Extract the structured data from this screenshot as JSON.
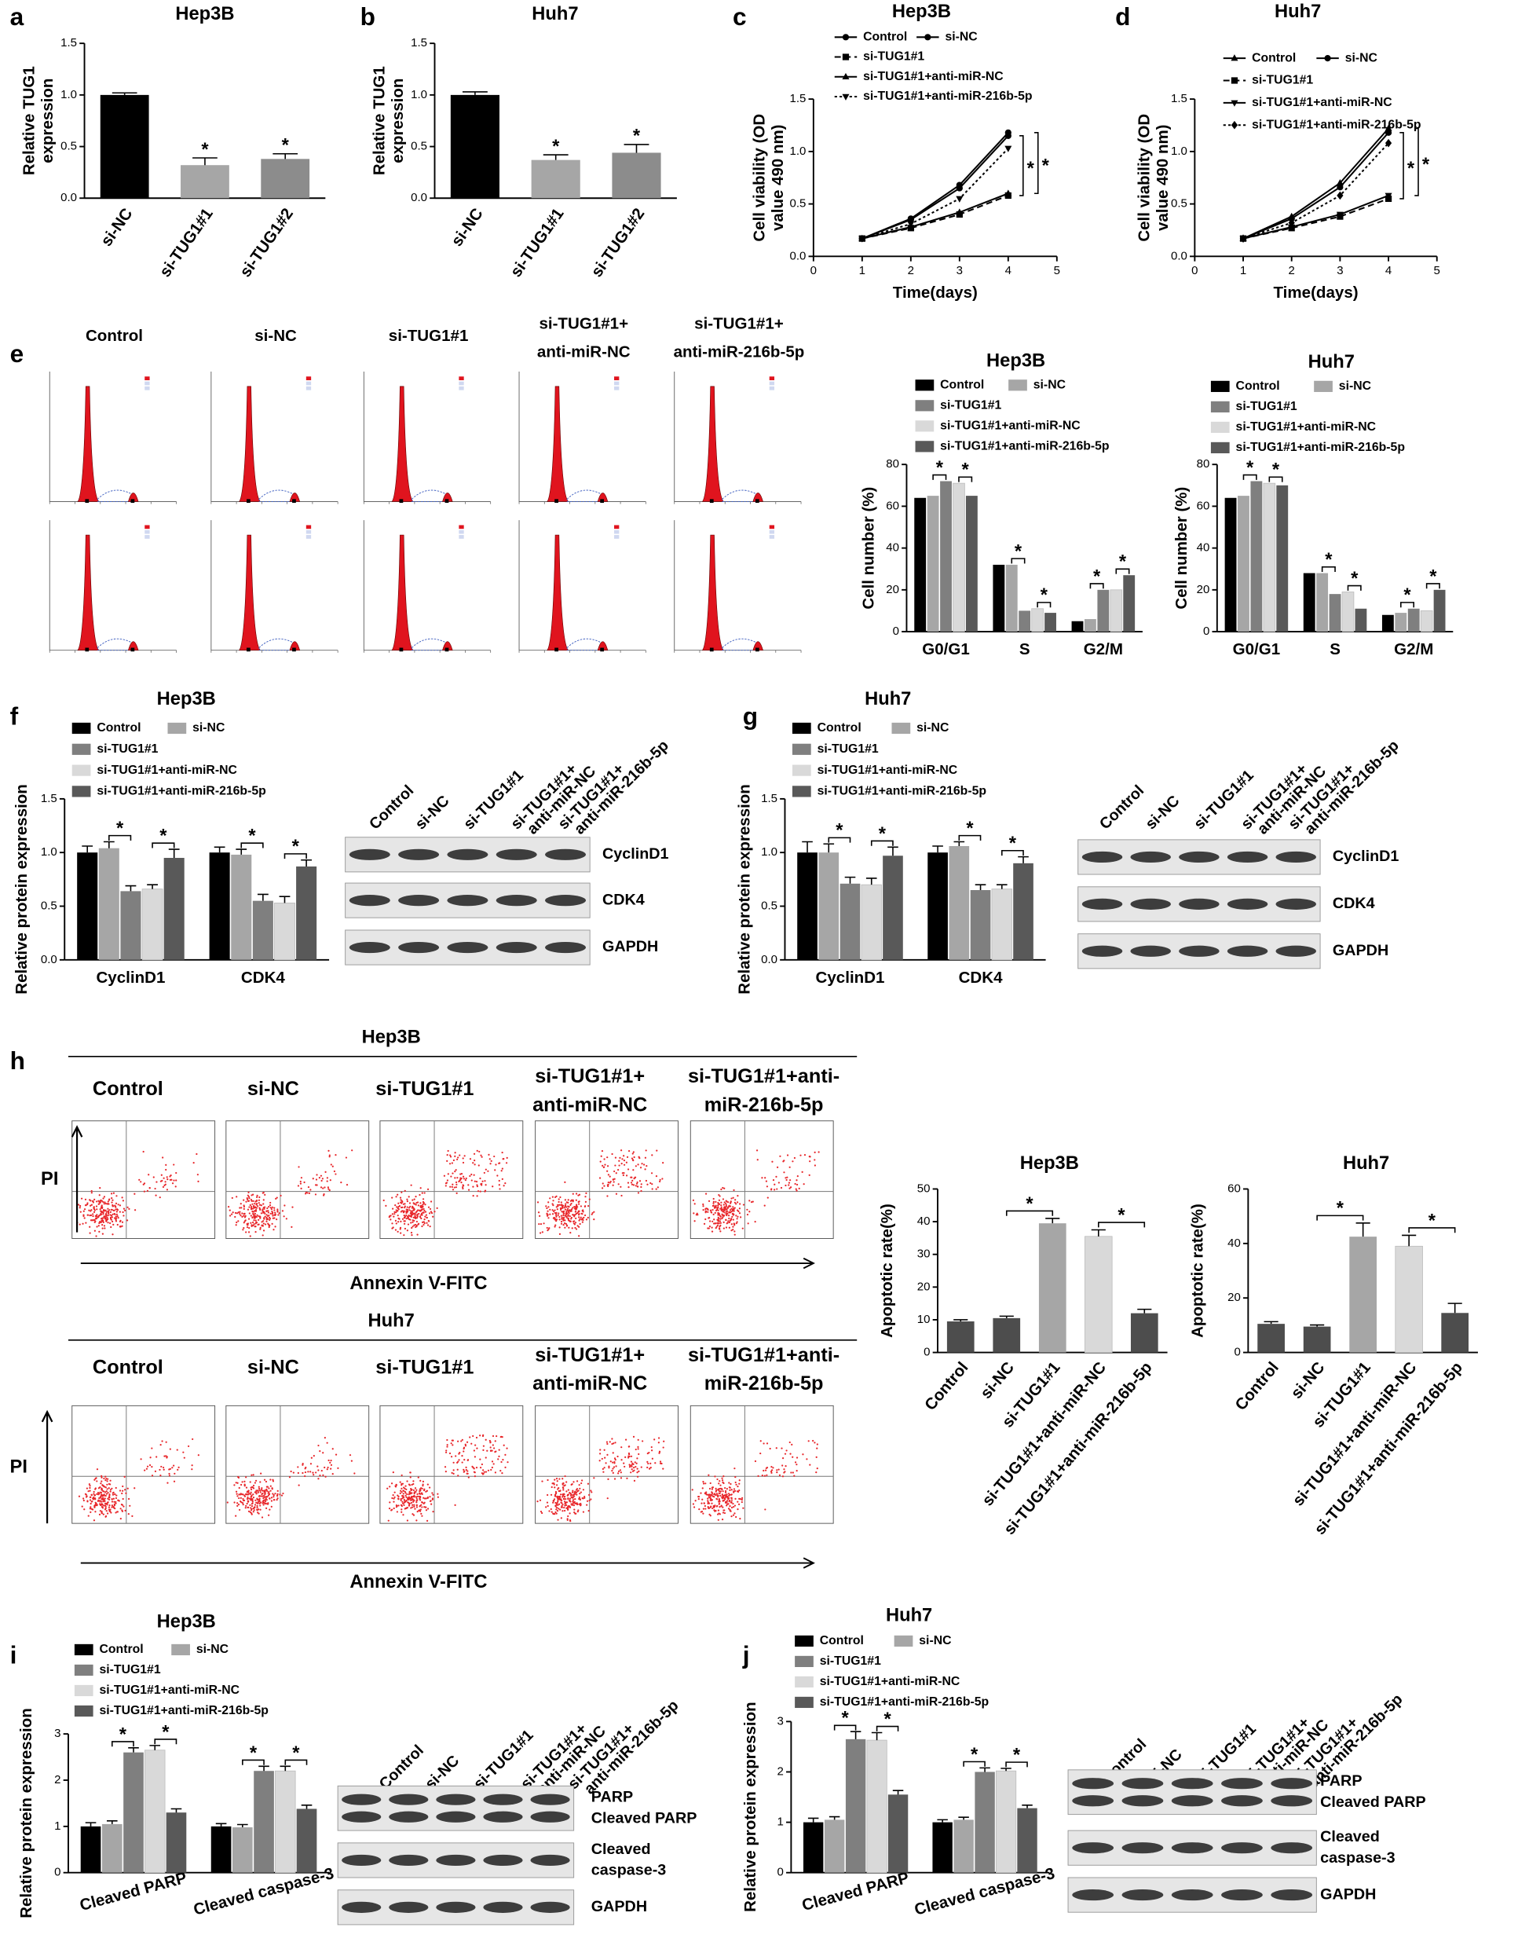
{
  "chart_data": [
    {
      "type": "bar",
      "panel": "a",
      "title": "Hep3B",
      "y_label": [
        "Relative TUG1",
        "expression"
      ],
      "categories": [
        "si-NC",
        "si-TUG1#1",
        "si-TUG1#2"
      ],
      "values": [
        1.0,
        0.32,
        0.38
      ],
      "errors": [
        0.02,
        0.07,
        0.05
      ],
      "colors": [
        "#000000",
        "#a6a6a6",
        "#8c8c8c"
      ],
      "ylim": [
        0,
        1.5
      ],
      "yticks": [
        {
          "value": 0,
          "label": "0.0"
        },
        0.5,
        {
          "value": 1,
          "label": "1.0"
        },
        1.5
      ],
      "annotations": [
        "*",
        "*"
      ]
    },
    {
      "type": "bar",
      "panel": "b",
      "title": "Huh7",
      "y_label": [
        "Relative TUG1",
        "expression"
      ],
      "categories": [
        "si-NC",
        "si-TUG1#1",
        "si-TUG1#2"
      ],
      "values": [
        1.0,
        0.37,
        0.44
      ],
      "errors": [
        0.03,
        0.05,
        0.08
      ],
      "colors": [
        "#000000",
        "#a6a6a6",
        "#8c8c8c"
      ],
      "ylim": [
        0,
        1.5
      ],
      "yticks": [
        {
          "value": 0,
          "label": "0.0"
        },
        0.5,
        {
          "value": 1,
          "label": "1.0"
        },
        1.5
      ],
      "annotations": [
        "*",
        "*"
      ]
    },
    {
      "type": "line",
      "panel": "c",
      "title": "Hep3B",
      "y_label": [
        "Cell viability (OD",
        "value 490 nm)"
      ],
      "x_label": "Time(days)",
      "x": [
        1,
        2,
        3,
        4
      ],
      "xlim": [
        0,
        5
      ],
      "xticks": [
        0,
        1,
        2,
        3,
        4,
        5
      ],
      "ylim": [
        0,
        1.5
      ],
      "yticks": [
        {
          "value": 0,
          "label": "0.0"
        },
        0.5,
        {
          "value": 1,
          "label": "1.0"
        },
        1.5
      ],
      "series": [
        {
          "name": "Control",
          "color": "#000000",
          "marker": "circle",
          "line_style": "solid",
          "values": [
            0.17,
            0.36,
            0.68,
            1.18
          ]
        },
        {
          "name": "si-NC",
          "color": "#000000",
          "marker": "circle",
          "line_style": "solid",
          "values": [
            0.17,
            0.35,
            0.65,
            1.15
          ]
        },
        {
          "name": "si-TUG1#1",
          "color": "#000000",
          "marker": "square",
          "line_style": "dashed",
          "values": [
            0.17,
            0.27,
            0.4,
            0.58
          ]
        },
        {
          "name": "si-TUG1#1+anti-miR-NC",
          "color": "#000000",
          "marker": "triangle",
          "line_style": "solid",
          "values": [
            0.17,
            0.28,
            0.42,
            0.6
          ]
        },
        {
          "name": "si-TUG1#1+anti-miR-216b-5p",
          "color": "#000000",
          "marker": "triangle-down",
          "line_style": "dotted",
          "values": [
            0.17,
            0.31,
            0.55,
            1.03
          ]
        }
      ],
      "annotations": [
        "*",
        "*"
      ]
    },
    {
      "type": "line",
      "panel": "d",
      "title": "Huh7",
      "y_label": [
        "Cell viability (OD",
        "value 490 nm)"
      ],
      "x_label": "Time(days)",
      "x": [
        1,
        2,
        3,
        4
      ],
      "xlim": [
        0,
        5
      ],
      "xticks": [
        0,
        1,
        2,
        3,
        4,
        5
      ],
      "ylim": [
        0,
        1.5
      ],
      "yticks": [
        {
          "value": 0,
          "label": "0.0"
        },
        0.5,
        {
          "value": 1,
          "label": "1.0"
        },
        1.5
      ],
      "series": [
        {
          "name": "Control",
          "color": "#000000",
          "marker": "triangle",
          "line_style": "solid",
          "values": [
            0.17,
            0.38,
            0.7,
            1.22
          ]
        },
        {
          "name": "si-NC",
          "color": "#000000",
          "marker": "circle",
          "line_style": "solid",
          "values": [
            0.17,
            0.36,
            0.66,
            1.18
          ]
        },
        {
          "name": "si-TUG1#1",
          "color": "#000000",
          "marker": "square",
          "line_style": "dashed",
          "values": [
            0.17,
            0.27,
            0.38,
            0.55
          ]
        },
        {
          "name": "si-TUG1#1+anti-miR-NC",
          "color": "#000000",
          "marker": "triangle-down",
          "line_style": "solid",
          "values": [
            0.17,
            0.28,
            0.4,
            0.58
          ]
        },
        {
          "name": "si-TUG1#1+anti-miR-216b-5p",
          "color": "#000000",
          "marker": "diamond",
          "line_style": "dotted",
          "values": [
            0.17,
            0.32,
            0.58,
            1.08
          ]
        }
      ],
      "annotations": [
        "*",
        "*"
      ]
    },
    {
      "type": "bar",
      "title": "Hep3B",
      "y_label": "Cell number (%)",
      "categories": [
        "G0/G1",
        "S",
        "G2/M"
      ],
      "ylim": [
        0,
        80
      ],
      "yticks": [
        0,
        20,
        40,
        60,
        80
      ],
      "series": [
        {
          "name": "Control",
          "color": "#000000",
          "values": [
            64,
            32,
            5
          ]
        },
        {
          "name": "si-NC",
          "color": "#a6a6a6",
          "values": [
            65,
            32,
            6
          ]
        },
        {
          "name": "si-TUG1#1",
          "color": "#7f7f7f",
          "values": [
            72,
            10,
            20
          ]
        },
        {
          "name": "si-TUG1#1+anti-miR-NC",
          "color": "#d9d9d9",
          "values": [
            71,
            11,
            20
          ]
        },
        {
          "name": "si-TUG1#1+anti-miR-216b-5p",
          "color": "#595959",
          "values": [
            65,
            9,
            27
          ]
        }
      ],
      "annotations": [
        "*",
        "*",
        "*",
        "*",
        "*",
        "*"
      ]
    },
    {
      "type": "bar",
      "title": "Huh7",
      "y_label": "Cell number (%)",
      "categories": [
        "G0/G1",
        "S",
        "G2/M"
      ],
      "ylim": [
        0,
        80
      ],
      "yticks": [
        0,
        20,
        40,
        60,
        80
      ],
      "series": [
        {
          "name": "Control",
          "color": "#000000",
          "values": [
            64,
            28,
            8
          ]
        },
        {
          "name": "si-NC",
          "color": "#a6a6a6",
          "values": [
            65,
            28,
            9
          ]
        },
        {
          "name": "si-TUG1#1",
          "color": "#7f7f7f",
          "values": [
            72,
            18,
            11
          ]
        },
        {
          "name": "si-TUG1#1+anti-miR-NC",
          "color": "#d9d9d9",
          "values": [
            71,
            19,
            10
          ]
        },
        {
          "name": "si-TUG1#1+anti-miR-216b-5p",
          "color": "#595959",
          "values": [
            70,
            11,
            20
          ]
        }
      ],
      "annotations": [
        "*",
        "*",
        "*",
        "*",
        "*",
        "*"
      ]
    },
    {
      "type": "bar",
      "panel": "f",
      "title": "Hep3B",
      "y_label": "Relative protein expression",
      "categories": [
        "CyclinD1",
        "CDK4"
      ],
      "ylim": [
        0,
        1.5
      ],
      "yticks": [
        {
          "value": 0,
          "label": "0.0"
        },
        0.5,
        {
          "value": 1,
          "label": "1.0"
        },
        1.5
      ],
      "series": [
        {
          "name": "Control",
          "color": "#000000",
          "values": [
            1.0,
            1.0
          ],
          "errors": [
            0.06,
            0.05
          ]
        },
        {
          "name": "si-NC",
          "color": "#a6a6a6",
          "values": [
            1.04,
            0.98
          ],
          "errors": [
            0.06,
            0.05
          ]
        },
        {
          "name": "si-TUG1#1",
          "color": "#7f7f7f",
          "values": [
            0.64,
            0.55
          ],
          "errors": [
            0.05,
            0.06
          ]
        },
        {
          "name": "si-TUG1#1+anti-miR-NC",
          "color": "#d9d9d9",
          "values": [
            0.66,
            0.53
          ],
          "errors": [
            0.04,
            0.06
          ]
        },
        {
          "name": "si-TUG1#1+anti-miR-216b-5p",
          "color": "#595959",
          "values": [
            0.95,
            0.87
          ],
          "errors": [
            0.08,
            0.06
          ]
        }
      ],
      "annotations": [
        "*",
        "*",
        "*",
        "*"
      ]
    },
    {
      "type": "bar",
      "panel": "g",
      "title": "Huh7",
      "y_label": "Relative protein expression",
      "categories": [
        "CyclinD1",
        "CDK4"
      ],
      "ylim": [
        0,
        1.5
      ],
      "yticks": [
        {
          "value": 0,
          "label": "0.0"
        },
        0.5,
        {
          "value": 1,
          "label": "1.0"
        },
        1.5
      ],
      "series": [
        {
          "name": "Control",
          "color": "#000000",
          "values": [
            1.0,
            1.0
          ],
          "errors": [
            0.1,
            0.06
          ]
        },
        {
          "name": "si-NC",
          "color": "#a6a6a6",
          "values": [
            1.0,
            1.06
          ],
          "errors": [
            0.08,
            0.04
          ]
        },
        {
          "name": "si-TUG1#1",
          "color": "#7f7f7f",
          "values": [
            0.71,
            0.65
          ],
          "errors": [
            0.06,
            0.05
          ]
        },
        {
          "name": "si-TUG1#1+anti-miR-NC",
          "color": "#d9d9d9",
          "values": [
            0.7,
            0.66
          ],
          "errors": [
            0.06,
            0.04
          ]
        },
        {
          "name": "si-TUG1#1+anti-miR-216b-5p",
          "color": "#595959",
          "values": [
            0.97,
            0.9
          ],
          "errors": [
            0.08,
            0.06
          ]
        }
      ],
      "annotations": [
        "*",
        "*",
        "*",
        "*"
      ]
    },
    {
      "type": "bar",
      "title": "Hep3B",
      "y_label": "Apoptotic rate(%)",
      "categories": [
        "Control",
        "si-NC",
        "si-TUG1#1",
        "si-TUG1#1+anti-miR-NC",
        "si-TUG1#1+anti-miR-216b-5p"
      ],
      "values": [
        9.5,
        10.5,
        39.5,
        35.5,
        12
      ],
      "errors": [
        0.5,
        0.6,
        1.5,
        2.0,
        1.2
      ],
      "colors": [
        "#4d4d4d",
        "#4d4d4d",
        "#a6a6a6",
        "#d9d9d9",
        "#4d4d4d"
      ],
      "ylim": [
        0,
        50
      ],
      "yticks": [
        0,
        10,
        20,
        30,
        40,
        50
      ],
      "annotations": [
        "*",
        "*"
      ]
    },
    {
      "type": "bar",
      "title": "Huh7",
      "y_label": "Apoptotic rate(%)",
      "categories": [
        "Control",
        "si-NC",
        "si-TUG1#1",
        "si-TUG1#1+anti-miR-NC",
        "si-TUG1#1+anti-miR-216b-5p"
      ],
      "values": [
        10.5,
        9.5,
        42.5,
        39,
        14.5
      ],
      "errors": [
        0.8,
        0.6,
        5,
        4,
        3.5
      ],
      "colors": [
        "#4d4d4d",
        "#4d4d4d",
        "#a6a6a6",
        "#d9d9d9",
        "#4d4d4d"
      ],
      "ylim": [
        0,
        60
      ],
      "yticks": [
        0,
        20,
        40,
        60
      ],
      "annotations": [
        "*",
        "*"
      ]
    },
    {
      "type": "bar",
      "panel": "i",
      "title": "Hep3B",
      "y_label": "Relative protein expression",
      "categories": [
        "Cleaved PARP",
        "Cleaved caspase-3"
      ],
      "ylim": [
        0,
        3
      ],
      "yticks": [
        0,
        1,
        2,
        3
      ],
      "series": [
        {
          "name": "Control",
          "color": "#000000",
          "values": [
            1.0,
            1.0
          ],
          "errors": [
            0.08,
            0.06
          ]
        },
        {
          "name": "si-NC",
          "color": "#a6a6a6",
          "values": [
            1.05,
            0.98
          ],
          "errors": [
            0.07,
            0.06
          ]
        },
        {
          "name": "si-TUG1#1",
          "color": "#7f7f7f",
          "values": [
            2.6,
            2.2
          ],
          "errors": [
            0.1,
            0.1
          ]
        },
        {
          "name": "si-TUG1#1+anti-miR-NC",
          "color": "#d9d9d9",
          "values": [
            2.65,
            2.2
          ],
          "errors": [
            0.1,
            0.1
          ]
        },
        {
          "name": "si-TUG1#1+anti-miR-216b-5p",
          "color": "#595959",
          "values": [
            1.3,
            1.38
          ],
          "errors": [
            0.08,
            0.08
          ]
        }
      ],
      "annotations": [
        "*",
        "*",
        "*",
        "*"
      ]
    },
    {
      "type": "bar",
      "panel": "j",
      "title": "Huh7",
      "y_label": "Relative protein expression",
      "categories": [
        "Cleaved PARP",
        "Cleaved caspase-3"
      ],
      "ylim": [
        0,
        3
      ],
      "yticks": [
        0,
        1,
        2,
        3
      ],
      "series": [
        {
          "name": "Control",
          "color": "#000000",
          "values": [
            1.0,
            1.0
          ],
          "errors": [
            0.08,
            0.05
          ]
        },
        {
          "name": "si-NC",
          "color": "#a6a6a6",
          "values": [
            1.05,
            1.05
          ],
          "errors": [
            0.06,
            0.05
          ]
        },
        {
          "name": "si-TUG1#1",
          "color": "#7f7f7f",
          "values": [
            2.65,
            2.0
          ],
          "errors": [
            0.15,
            0.08
          ]
        },
        {
          "name": "si-TUG1#1+anti-miR-NC",
          "color": "#d9d9d9",
          "values": [
            2.63,
            2.02
          ],
          "errors": [
            0.15,
            0.05
          ]
        },
        {
          "name": "si-TUG1#1+anti-miR-216b-5p",
          "color": "#595959",
          "values": [
            1.55,
            1.28
          ],
          "errors": [
            0.08,
            0.06
          ]
        }
      ],
      "annotations": [
        "*",
        "*",
        "*",
        "*"
      ]
    }
  ],
  "figure": {
    "e": {
      "panel": "e",
      "columns": [
        [
          "Control"
        ],
        [
          "si-NC"
        ],
        [
          "si-TUG1#1"
        ],
        [
          "si-TUG1#1+",
          "anti-miR-NC"
        ],
        [
          "si-TUG1#1+",
          "anti-miR-216b-5p"
        ]
      ]
    },
    "h": {
      "panel": "h",
      "groups": [
        {
          "title": "Hep3B",
          "columns": [
            [
              "Control"
            ],
            [
              "si-NC"
            ],
            [
              "si-TUG1#1"
            ],
            [
              "si-TUG1#1+",
              "anti-miR-NC"
            ],
            [
              "si-TUG1#1+anti-",
              "miR-216b-5p"
            ]
          ],
          "y_label": "PI",
          "x_label": "Annexin V-FITC"
        },
        {
          "title": "Huh7",
          "columns": [
            [
              "Control"
            ],
            [
              "si-NC"
            ],
            [
              "si-TUG1#1"
            ],
            [
              "si-TUG1#1+",
              "anti-miR-NC"
            ],
            [
              "si-TUG1#1+anti-",
              "miR-216b-5p"
            ]
          ],
          "y_label": "PI",
          "x_label": "Annexin V-FITC"
        }
      ]
    },
    "blots": [
      {
        "lanes": [
          [
            "Control"
          ],
          [
            "si-NC"
          ],
          [
            "si-TUG1#1"
          ],
          [
            "si-TUG1#1+",
            "anti-miR-NC"
          ],
          [
            "si-TUG1#1+",
            "anti-miR-216b-5p"
          ]
        ],
        "proteins": [
          [
            "CyclinD1"
          ],
          [
            "CDK4"
          ],
          [
            "GAPDH"
          ]
        ]
      },
      {
        "lanes": [
          [
            "Control"
          ],
          [
            "si-NC"
          ],
          [
            "si-TUG1#1"
          ],
          [
            "si-TUG1#1+",
            "anti-miR-NC"
          ],
          [
            "si-TUG1#1+",
            "anti-miR-216b-5p"
          ]
        ],
        "proteins": [
          [
            "CyclinD1"
          ],
          [
            "CDK4"
          ],
          [
            "GAPDH"
          ]
        ]
      },
      {
        "lanes": [
          [
            "Control"
          ],
          [
            "si-NC"
          ],
          [
            "si-TUG1#1"
          ],
          [
            "si-TUG1#1+",
            "anti-miR-NC"
          ],
          [
            "si-TUG1#1+",
            "anti-miR-216b-5p"
          ]
        ],
        "proteins": [
          [
            "PARP",
            "Cleaved PARP"
          ],
          [
            "Cleaved",
            "caspase-3"
          ],
          [
            "GAPDH"
          ]
        ]
      },
      {
        "lanes": [
          [
            "Control"
          ],
          [
            "si-NC"
          ],
          [
            "si-TUG1#1"
          ],
          [
            "si-TUG1#1+",
            "anti-miR-NC"
          ],
          [
            "si-TUG1#1+",
            "anti-miR-216b-5p"
          ]
        ],
        "proteins": [
          [
            "PARP",
            "Cleaved PARP"
          ],
          [
            "Cleaved",
            "caspase-3"
          ],
          [
            "GAPDH"
          ]
        ]
      }
    ]
  }
}
